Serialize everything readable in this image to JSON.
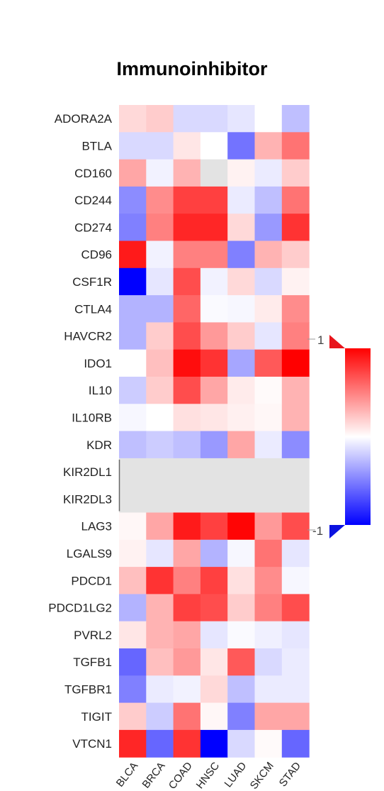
{
  "chart_data": {
    "type": "heatmap",
    "title": "Immunoinhibitor",
    "rows": [
      "ADORA2A",
      "BTLA",
      "CD160",
      "CD244",
      "CD274",
      "CD96",
      "CSF1R",
      "CTLA4",
      "HAVCR2",
      "IDO1",
      "IL10",
      "IL10RB",
      "KDR",
      "KIR2DL1",
      "KIR2DL3",
      "LAG3",
      "LGALS9",
      "PDCD1",
      "PDCD1LG2",
      "PVRL2",
      "TGFB1",
      "TGFBR1",
      "TIGIT",
      "VTCN1"
    ],
    "columns": [
      "BLCA",
      "BRCA",
      "COAD",
      "HNSC",
      "LUAD",
      "SKCM",
      "STAD"
    ],
    "values": [
      [
        0.15,
        0.2,
        -0.15,
        -0.15,
        -0.1,
        0.0,
        -0.25
      ],
      [
        -0.15,
        -0.15,
        0.1,
        0.0,
        -0.55,
        0.3,
        0.55
      ],
      [
        0.35,
        -0.05,
        0.3,
        null,
        0.05,
        -0.08,
        0.2
      ],
      [
        -0.45,
        0.45,
        0.75,
        0.75,
        -0.08,
        -0.25,
        0.55
      ],
      [
        -0.5,
        0.5,
        0.85,
        0.85,
        0.15,
        -0.4,
        0.8
      ],
      [
        0.9,
        -0.05,
        0.5,
        0.5,
        -0.5,
        0.3,
        0.2
      ],
      [
        -1.0,
        -0.1,
        0.7,
        -0.05,
        0.15,
        -0.15,
        0.05
      ],
      [
        -0.3,
        -0.3,
        0.6,
        -0.02,
        -0.03,
        0.08,
        0.45
      ],
      [
        -0.3,
        0.2,
        0.7,
        0.4,
        0.2,
        -0.1,
        0.5
      ],
      [
        0.0,
        0.25,
        0.95,
        0.8,
        -0.35,
        0.65,
        1.0
      ],
      [
        -0.2,
        0.2,
        0.7,
        0.35,
        0.08,
        0.02,
        0.3
      ],
      [
        -0.03,
        0.0,
        0.12,
        0.1,
        0.06,
        0.03,
        0.3
      ],
      [
        -0.25,
        -0.2,
        -0.25,
        -0.4,
        0.35,
        -0.08,
        -0.45
      ],
      [
        null,
        null,
        null,
        null,
        null,
        null,
        null
      ],
      [
        null,
        null,
        null,
        null,
        null,
        null,
        null
      ],
      [
        0.03,
        0.35,
        0.9,
        0.75,
        0.98,
        0.4,
        0.7
      ],
      [
        0.05,
        -0.1,
        0.35,
        -0.3,
        -0.03,
        0.55,
        -0.1
      ],
      [
        0.25,
        0.8,
        0.5,
        0.75,
        0.12,
        0.45,
        -0.03
      ],
      [
        -0.3,
        0.3,
        0.75,
        0.7,
        0.2,
        0.5,
        0.7
      ],
      [
        0.1,
        0.3,
        0.35,
        -0.1,
        -0.02,
        -0.06,
        -0.1
      ],
      [
        -0.6,
        0.25,
        0.4,
        0.1,
        0.65,
        -0.15,
        -0.08
      ],
      [
        -0.5,
        -0.08,
        -0.05,
        0.15,
        -0.25,
        -0.08,
        -0.08
      ],
      [
        0.2,
        -0.2,
        0.55,
        0.03,
        -0.5,
        0.35,
        0.35
      ],
      [
        0.85,
        -0.6,
        0.8,
        -1.0,
        -0.15,
        0.02,
        -0.6
      ]
    ],
    "color_scale": {
      "min": -1,
      "max": 1,
      "low": "#0000ff",
      "mid": "#ffffff",
      "high": "#ff0000",
      "missing": "#e3e3e3"
    },
    "legend": {
      "labels": [
        "1",
        "-1"
      ],
      "position": "right"
    }
  }
}
